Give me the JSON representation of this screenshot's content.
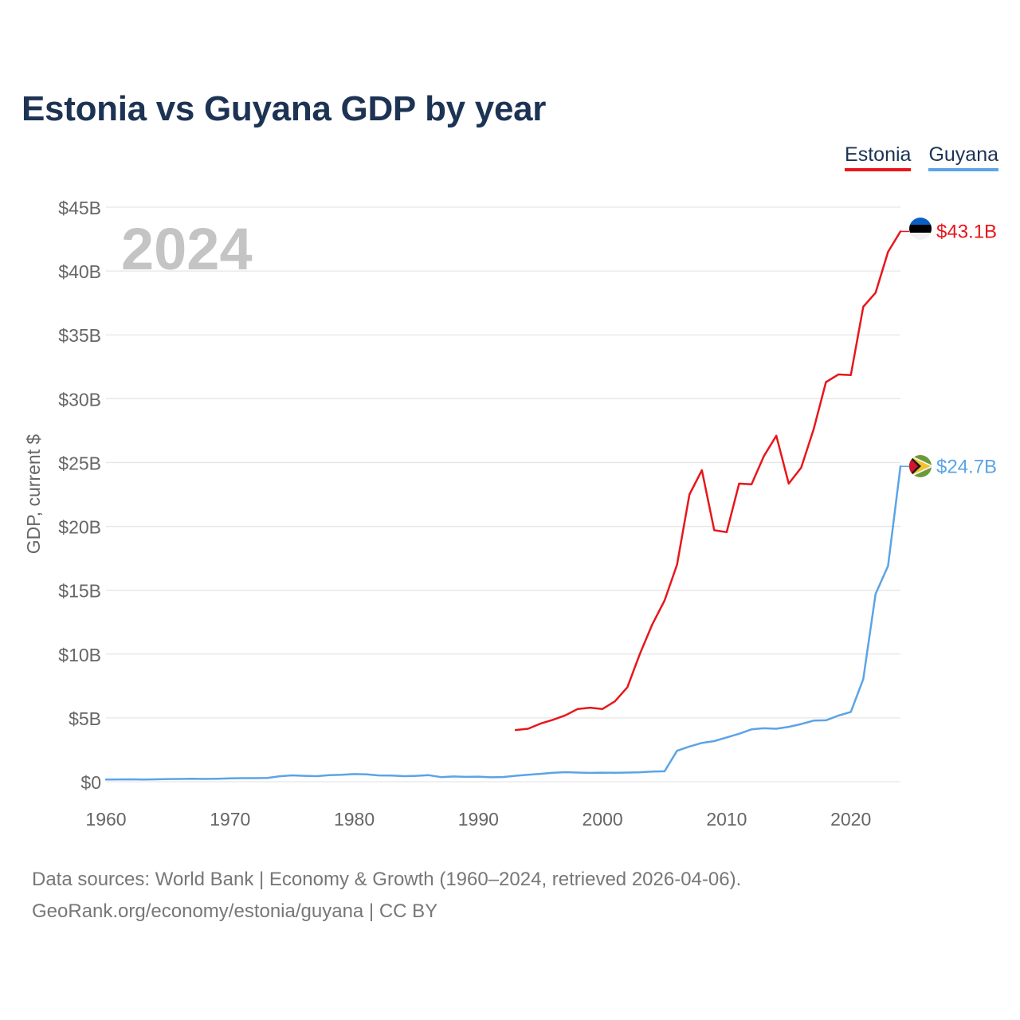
{
  "title": "Estonia vs Guyana GDP by year",
  "legend": [
    {
      "name": "Estonia",
      "color": "#e8161b"
    },
    {
      "name": "Guyana",
      "color": "#5ba4e6"
    }
  ],
  "year_watermark": "2024",
  "footer": {
    "line1": "Data sources: World Bank | Economy & Growth (1960–2024, retrieved 2026-04-06).",
    "line2": "GeoRank.org/economy/estonia/guyana | CC BY"
  },
  "chart_data": {
    "type": "line",
    "title": "Estonia vs Guyana GDP by year",
    "xlabel": "",
    "ylabel": "GDP, current $",
    "xlim": [
      1960,
      2024
    ],
    "ylim": [
      0,
      45
    ],
    "y_unit": "billions USD",
    "x_ticks": [
      1960,
      1970,
      1980,
      1990,
      2000,
      2010,
      2020
    ],
    "x_tick_labels": [
      "1960",
      "1970",
      "1980",
      "1990",
      "2000",
      "2010",
      "2020"
    ],
    "y_ticks": [
      0,
      5,
      10,
      15,
      20,
      25,
      30,
      35,
      40,
      45
    ],
    "y_tick_labels": [
      "$0",
      "$5B",
      "$10B",
      "$15B",
      "$20B",
      "$25B",
      "$30B",
      "$35B",
      "$40B",
      "$45B"
    ],
    "grid": true,
    "legend_position": "top-right",
    "series": [
      {
        "name": "Estonia",
        "color": "#e8161b",
        "end_label": "$43.1B",
        "flag": "estonia-flag",
        "x": [
          1993,
          1994,
          1995,
          1996,
          1997,
          1998,
          1999,
          2000,
          2001,
          2002,
          2003,
          2004,
          2005,
          2006,
          2007,
          2008,
          2009,
          2010,
          2011,
          2012,
          2013,
          2014,
          2015,
          2016,
          2017,
          2018,
          2019,
          2020,
          2021,
          2022,
          2023,
          2024
        ],
        "values": [
          4.05,
          4.15,
          4.55,
          4.85,
          5.2,
          5.7,
          5.8,
          5.7,
          6.3,
          7.4,
          10.0,
          12.3,
          14.2,
          17.0,
          22.5,
          24.4,
          19.7,
          19.55,
          23.35,
          23.3,
          25.5,
          27.1,
          23.35,
          24.6,
          27.6,
          31.3,
          31.9,
          31.85,
          37.2,
          38.3,
          41.5,
          43.1
        ]
      },
      {
        "name": "Guyana",
        "color": "#5ba4e6",
        "end_label": "$24.7B",
        "flag": "guyana-flag",
        "x": [
          1960,
          1961,
          1962,
          1963,
          1964,
          1965,
          1966,
          1967,
          1968,
          1969,
          1970,
          1971,
          1972,
          1973,
          1974,
          1975,
          1976,
          1977,
          1978,
          1979,
          1980,
          1981,
          1982,
          1983,
          1984,
          1985,
          1986,
          1987,
          1988,
          1989,
          1990,
          1991,
          1992,
          1993,
          1994,
          1995,
          1996,
          1997,
          1998,
          1999,
          2000,
          2001,
          2002,
          2003,
          2004,
          2005,
          2006,
          2007,
          2008,
          2009,
          2010,
          2011,
          2012,
          2013,
          2014,
          2015,
          2016,
          2017,
          2018,
          2019,
          2020,
          2021,
          2022,
          2023,
          2024
        ],
        "values": [
          0.17,
          0.18,
          0.19,
          0.17,
          0.19,
          0.21,
          0.22,
          0.24,
          0.22,
          0.24,
          0.26,
          0.28,
          0.28,
          0.3,
          0.43,
          0.5,
          0.46,
          0.44,
          0.51,
          0.54,
          0.6,
          0.58,
          0.49,
          0.48,
          0.44,
          0.46,
          0.51,
          0.36,
          0.41,
          0.38,
          0.4,
          0.35,
          0.37,
          0.47,
          0.55,
          0.62,
          0.7,
          0.75,
          0.72,
          0.69,
          0.71,
          0.7,
          0.72,
          0.74,
          0.79,
          0.82,
          2.42,
          2.76,
          3.04,
          3.18,
          3.47,
          3.76,
          4.1,
          4.19,
          4.15,
          4.3,
          4.52,
          4.79,
          4.81,
          5.18,
          5.47,
          8.04,
          14.72,
          16.9,
          24.7
        ]
      }
    ]
  }
}
